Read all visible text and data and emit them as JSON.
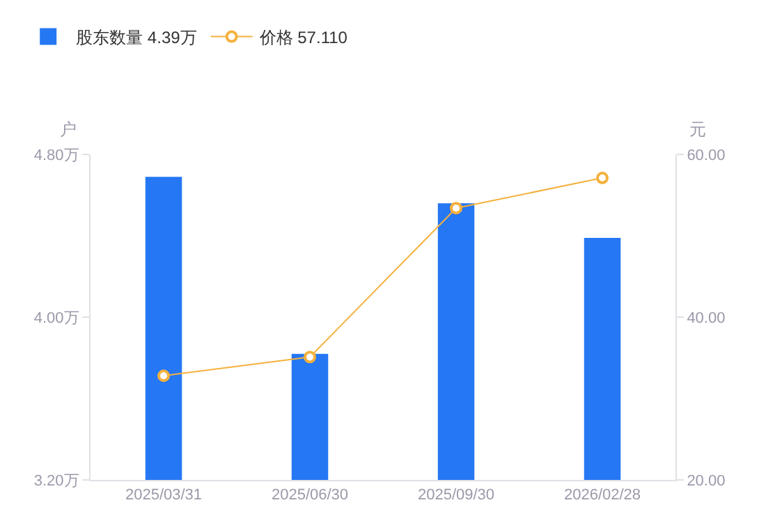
{
  "chart_data": {
    "type": "bar",
    "categories": [
      "2025/03/31",
      "2025/06/30",
      "2025/09/30",
      "2026/02/28"
    ],
    "series": [
      {
        "name": "股东数量 4.39万",
        "color": "#2577f3",
        "values": [
          4.69,
          3.82,
          4.56,
          4.39
        ]
      },
      {
        "name": "价格 57.110",
        "type": "line",
        "axis": "y2",
        "color": "#f5b13d",
        "values": [
          32.8,
          35.1,
          53.4,
          57.11
        ]
      }
    ],
    "ylabel": "户",
    "y2label": "元",
    "ylim": [
      3.2,
      4.8
    ],
    "yticks": [
      {
        "value": 3.2,
        "label": "3.20万"
      },
      {
        "value": 4.0,
        "label": "4.00万"
      },
      {
        "value": 4.8,
        "label": "4.80万"
      }
    ],
    "y2lim": [
      20,
      60
    ],
    "y2ticks": [
      {
        "value": 20,
        "label": "20.00"
      },
      {
        "value": 40,
        "label": "40.00"
      },
      {
        "value": 60,
        "label": "60.00"
      }
    ],
    "grid": false,
    "legend": "top left",
    "marker": "circle",
    "line_style": "solid"
  }
}
